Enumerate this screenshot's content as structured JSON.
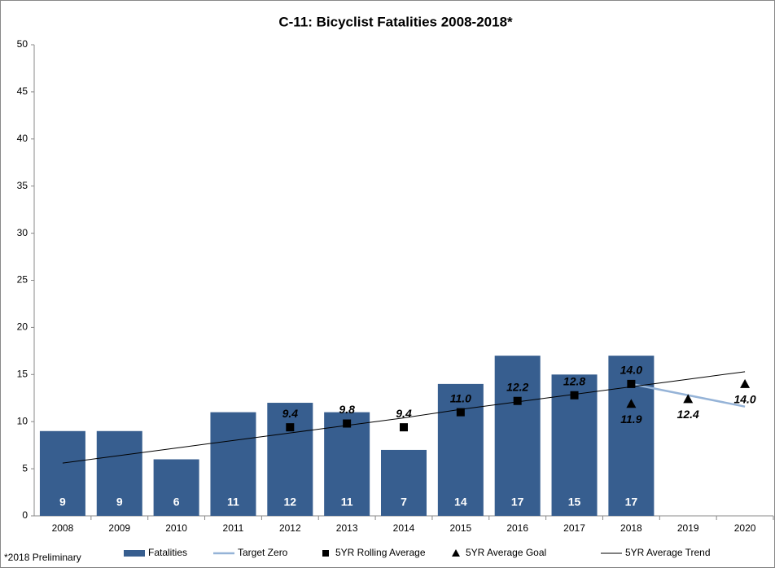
{
  "chart_data": {
    "type": "bar",
    "title": "C-11: Bicyclist Fatalities 2008-2018*",
    "footnote": "*2018 Preliminary",
    "categories": [
      "2008",
      "2009",
      "2010",
      "2011",
      "2012",
      "2013",
      "2014",
      "2015",
      "2016",
      "2017",
      "2018",
      "2019",
      "2020"
    ],
    "ylim": [
      0,
      50
    ],
    "yticks": [
      0,
      5,
      10,
      15,
      20,
      25,
      30,
      35,
      40,
      45,
      50
    ],
    "grid": false,
    "legend": "bottom",
    "series": [
      {
        "name": "Fatalities",
        "type": "bar",
        "color": "#375e8f",
        "values": [
          9,
          9,
          6,
          11,
          12,
          11,
          7,
          14,
          17,
          15,
          17,
          null,
          null
        ]
      },
      {
        "name": "Target Zero",
        "type": "line",
        "color": "#95b3d7",
        "values": [
          null,
          null,
          null,
          null,
          null,
          null,
          null,
          null,
          null,
          null,
          14.0,
          12.8,
          11.6
        ]
      },
      {
        "name": "5YR Rolling Average",
        "type": "square",
        "color": "#000000",
        "values": [
          null,
          null,
          null,
          null,
          9.4,
          9.8,
          9.4,
          11.0,
          12.2,
          12.8,
          14.0,
          null,
          null
        ],
        "value_labels": [
          null,
          null,
          null,
          null,
          "9.4",
          "9.8",
          "9.4",
          "11.0",
          "12.2",
          "12.8",
          "14.0",
          null,
          null
        ]
      },
      {
        "name": "5YR Average Goal",
        "type": "triangle",
        "color": "#000000",
        "values": [
          null,
          null,
          null,
          null,
          null,
          null,
          null,
          null,
          null,
          null,
          11.9,
          12.4,
          14.0
        ],
        "value_labels": [
          null,
          null,
          null,
          null,
          null,
          null,
          null,
          null,
          null,
          null,
          "11.9",
          "12.4",
          "14.0"
        ]
      },
      {
        "name": "5YR Average Trend",
        "type": "line",
        "color": "#000000",
        "values": [
          5.6,
          6.4,
          7.2,
          8.0,
          8.8,
          9.6,
          10.4,
          11.3,
          12.1,
          12.9,
          13.7,
          14.5,
          15.3
        ]
      }
    ]
  }
}
